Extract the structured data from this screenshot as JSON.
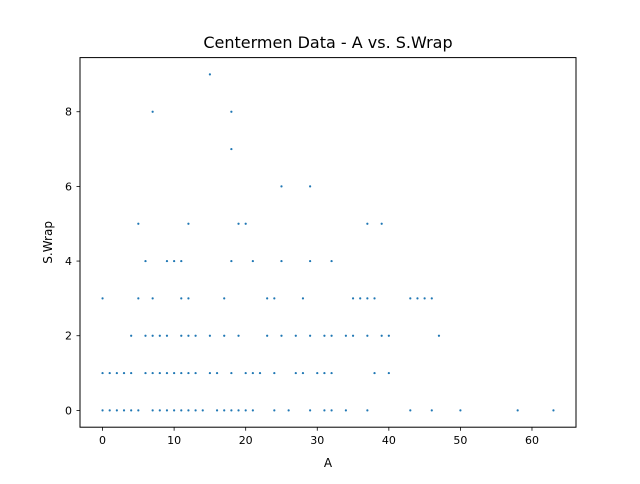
{
  "chart_data": {
    "type": "scatter",
    "title": "Centermen Data - A vs. S.Wrap",
    "xlabel": "A",
    "ylabel": "S.Wrap",
    "xlim": [
      -3.15,
      66.15
    ],
    "ylim": [
      -0.45,
      9.45
    ],
    "xticks": [
      0,
      10,
      20,
      30,
      40,
      50,
      60
    ],
    "yticks": [
      0,
      2,
      4,
      6,
      8
    ],
    "grid": false,
    "legend": "none",
    "marker_color": "#1f77b4",
    "points": [
      {
        "x": 0,
        "y": 0
      },
      {
        "x": 1,
        "y": 0
      },
      {
        "x": 2,
        "y": 0
      },
      {
        "x": 3,
        "y": 0
      },
      {
        "x": 4,
        "y": 0
      },
      {
        "x": 5,
        "y": 0
      },
      {
        "x": 7,
        "y": 0
      },
      {
        "x": 8,
        "y": 0
      },
      {
        "x": 9,
        "y": 0
      },
      {
        "x": 10,
        "y": 0
      },
      {
        "x": 11,
        "y": 0
      },
      {
        "x": 12,
        "y": 0
      },
      {
        "x": 13,
        "y": 0
      },
      {
        "x": 14,
        "y": 0
      },
      {
        "x": 16,
        "y": 0
      },
      {
        "x": 17,
        "y": 0
      },
      {
        "x": 18,
        "y": 0
      },
      {
        "x": 19,
        "y": 0
      },
      {
        "x": 20,
        "y": 0
      },
      {
        "x": 21,
        "y": 0
      },
      {
        "x": 24,
        "y": 0
      },
      {
        "x": 26,
        "y": 0
      },
      {
        "x": 29,
        "y": 0
      },
      {
        "x": 31,
        "y": 0
      },
      {
        "x": 32,
        "y": 0
      },
      {
        "x": 34,
        "y": 0
      },
      {
        "x": 37,
        "y": 0
      },
      {
        "x": 43,
        "y": 0
      },
      {
        "x": 46,
        "y": 0
      },
      {
        "x": 50,
        "y": 0
      },
      {
        "x": 58,
        "y": 0
      },
      {
        "x": 63,
        "y": 0
      },
      {
        "x": 0,
        "y": 1
      },
      {
        "x": 1,
        "y": 1
      },
      {
        "x": 2,
        "y": 1
      },
      {
        "x": 3,
        "y": 1
      },
      {
        "x": 4,
        "y": 1
      },
      {
        "x": 6,
        "y": 1
      },
      {
        "x": 7,
        "y": 1
      },
      {
        "x": 8,
        "y": 1
      },
      {
        "x": 9,
        "y": 1
      },
      {
        "x": 10,
        "y": 1
      },
      {
        "x": 11,
        "y": 1
      },
      {
        "x": 12,
        "y": 1
      },
      {
        "x": 13,
        "y": 1
      },
      {
        "x": 15,
        "y": 1
      },
      {
        "x": 16,
        "y": 1
      },
      {
        "x": 18,
        "y": 1
      },
      {
        "x": 20,
        "y": 1
      },
      {
        "x": 21,
        "y": 1
      },
      {
        "x": 22,
        "y": 1
      },
      {
        "x": 24,
        "y": 1
      },
      {
        "x": 27,
        "y": 1
      },
      {
        "x": 28,
        "y": 1
      },
      {
        "x": 30,
        "y": 1
      },
      {
        "x": 31,
        "y": 1
      },
      {
        "x": 32,
        "y": 1
      },
      {
        "x": 38,
        "y": 1
      },
      {
        "x": 40,
        "y": 1
      },
      {
        "x": 4,
        "y": 2
      },
      {
        "x": 6,
        "y": 2
      },
      {
        "x": 7,
        "y": 2
      },
      {
        "x": 8,
        "y": 2
      },
      {
        "x": 9,
        "y": 2
      },
      {
        "x": 11,
        "y": 2
      },
      {
        "x": 12,
        "y": 2
      },
      {
        "x": 13,
        "y": 2
      },
      {
        "x": 15,
        "y": 2
      },
      {
        "x": 17,
        "y": 2
      },
      {
        "x": 19,
        "y": 2
      },
      {
        "x": 23,
        "y": 2
      },
      {
        "x": 25,
        "y": 2
      },
      {
        "x": 27,
        "y": 2
      },
      {
        "x": 29,
        "y": 2
      },
      {
        "x": 31,
        "y": 2
      },
      {
        "x": 32,
        "y": 2
      },
      {
        "x": 34,
        "y": 2
      },
      {
        "x": 35,
        "y": 2
      },
      {
        "x": 37,
        "y": 2
      },
      {
        "x": 39,
        "y": 2
      },
      {
        "x": 40,
        "y": 2
      },
      {
        "x": 47,
        "y": 2
      },
      {
        "x": 0,
        "y": 3
      },
      {
        "x": 5,
        "y": 3
      },
      {
        "x": 7,
        "y": 3
      },
      {
        "x": 11,
        "y": 3
      },
      {
        "x": 12,
        "y": 3
      },
      {
        "x": 17,
        "y": 3
      },
      {
        "x": 23,
        "y": 3
      },
      {
        "x": 24,
        "y": 3
      },
      {
        "x": 28,
        "y": 3
      },
      {
        "x": 35,
        "y": 3
      },
      {
        "x": 36,
        "y": 3
      },
      {
        "x": 37,
        "y": 3
      },
      {
        "x": 38,
        "y": 3
      },
      {
        "x": 43,
        "y": 3
      },
      {
        "x": 44,
        "y": 3
      },
      {
        "x": 45,
        "y": 3
      },
      {
        "x": 46,
        "y": 3
      },
      {
        "x": 6,
        "y": 4
      },
      {
        "x": 9,
        "y": 4
      },
      {
        "x": 10,
        "y": 4
      },
      {
        "x": 11,
        "y": 4
      },
      {
        "x": 18,
        "y": 4
      },
      {
        "x": 21,
        "y": 4
      },
      {
        "x": 25,
        "y": 4
      },
      {
        "x": 29,
        "y": 4
      },
      {
        "x": 32,
        "y": 4
      },
      {
        "x": 5,
        "y": 5
      },
      {
        "x": 12,
        "y": 5
      },
      {
        "x": 19,
        "y": 5
      },
      {
        "x": 20,
        "y": 5
      },
      {
        "x": 37,
        "y": 5
      },
      {
        "x": 39,
        "y": 5
      },
      {
        "x": 25,
        "y": 6
      },
      {
        "x": 29,
        "y": 6
      },
      {
        "x": 18,
        "y": 7
      },
      {
        "x": 7,
        "y": 8
      },
      {
        "x": 18,
        "y": 8
      },
      {
        "x": 15,
        "y": 9
      }
    ]
  }
}
